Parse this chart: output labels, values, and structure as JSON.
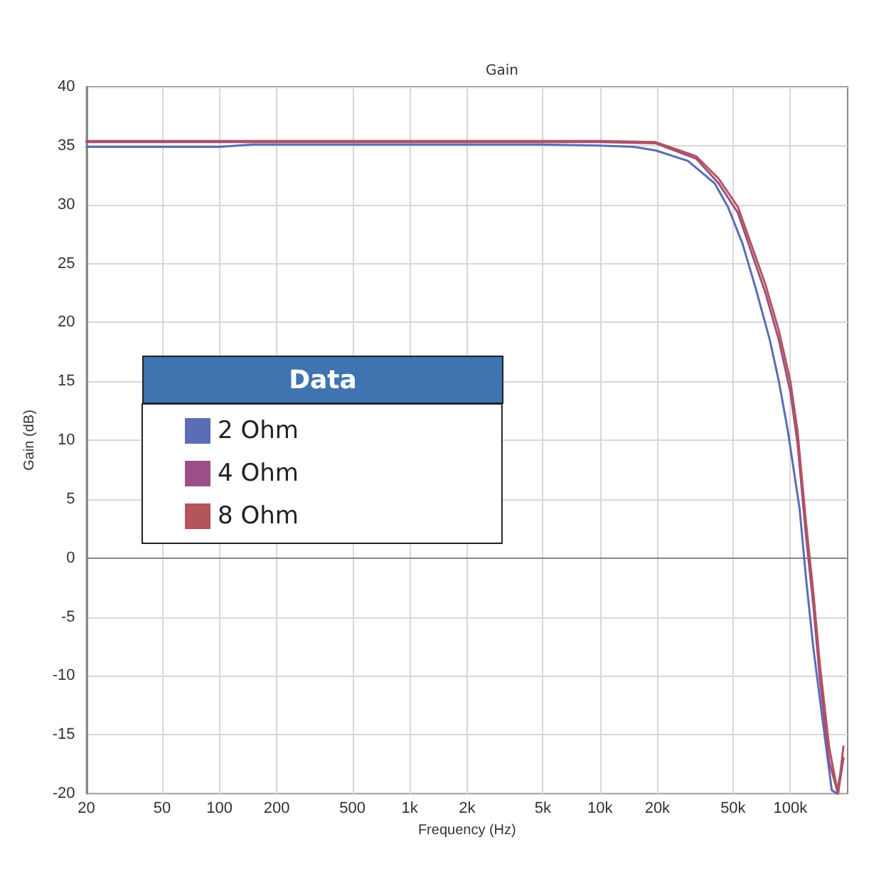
{
  "chart_data": {
    "type": "line",
    "title": "Gain",
    "xlabel": "Frequency (Hz)",
    "ylabel": "Gain (dB)",
    "legend_title": "Data",
    "legend": "left",
    "grid": true,
    "log": "x",
    "marker": "none",
    "line_style": "solid",
    "xlim": [
      20,
      200000
    ],
    "xticks": [
      20,
      50,
      100,
      200,
      500,
      {
        "value": 1000,
        "label": "1k"
      },
      {
        "value": 2000,
        "label": "2k"
      },
      {
        "value": 5000,
        "label": "5k"
      },
      {
        "value": 10000,
        "label": "10k"
      },
      {
        "value": 20000,
        "label": "20k"
      },
      {
        "value": 50000,
        "label": "50k"
      },
      {
        "value": 100000,
        "label": "100k"
      }
    ],
    "ylim": [
      -20,
      40
    ],
    "yticks": [
      -20,
      -15,
      -10,
      -5,
      0,
      5,
      10,
      15,
      20,
      25,
      30,
      35,
      40
    ],
    "series": [
      {
        "name": "2 Ohm",
        "color": "#5b6db5",
        "x": [
          20,
          100,
          150,
          1000,
          5000,
          10000,
          15000,
          19600,
          29000,
          40000,
          47000,
          56000,
          66000,
          78000,
          87000,
          97000,
          112000,
          121000,
          132000,
          147000,
          165000,
          175000,
          190000
        ],
        "values": [
          34.9,
          34.9,
          35.1,
          35.1,
          35.1,
          35.0,
          34.9,
          34.6,
          33.7,
          31.8,
          29.8,
          26.7,
          22.8,
          18.5,
          15.0,
          10.8,
          4.1,
          -1.8,
          -7.6,
          -13.5,
          -19.7,
          -20,
          -17
        ]
      },
      {
        "name": "4 Ohm",
        "color": "#9b4f86",
        "x": [
          20,
          1000,
          10000,
          19600,
          32000,
          42000,
          53000,
          62000,
          74000,
          87000,
          100000,
          109000,
          121000,
          132000,
          143000,
          160000,
          178000,
          190000
        ],
        "values": [
          35.3,
          35.3,
          35.3,
          35.2,
          33.9,
          31.8,
          29.3,
          26.1,
          22.5,
          18.5,
          14.1,
          9.8,
          1.8,
          -4.0,
          -10.3,
          -17.3,
          -20,
          -17
        ]
      },
      {
        "name": "8 Ohm",
        "color": "#b5545a",
        "x": [
          20,
          1000,
          10000,
          19600,
          32000,
          42000,
          53000,
          62000,
          74000,
          87000,
          100000,
          109000,
          121000,
          132000,
          143000,
          160000,
          178000,
          190000
        ],
        "values": [
          35.4,
          35.4,
          35.4,
          35.3,
          34.1,
          32.2,
          29.8,
          26.7,
          23.2,
          19.3,
          15.0,
          10.8,
          2.9,
          -2.9,
          -9.1,
          -16.1,
          -20,
          -16
        ]
      }
    ]
  }
}
